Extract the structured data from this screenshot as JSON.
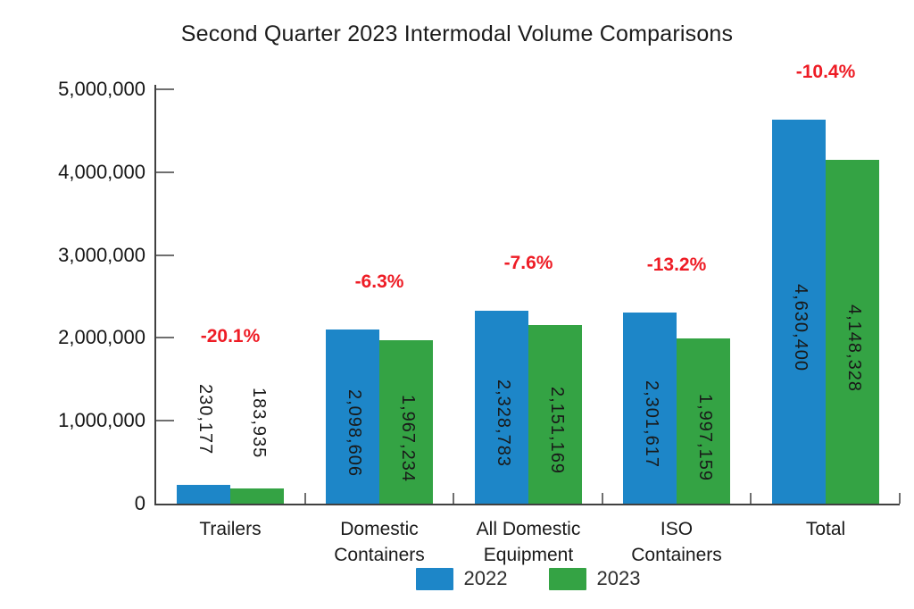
{
  "chart_data": {
    "type": "bar",
    "title": "Second Quarter 2023 Intermodal Volume Comparisons",
    "categories": [
      "Trailers",
      "Domestic Containers",
      "All Domestic Equipment",
      "ISO Containers",
      "Total"
    ],
    "category_label_lines": [
      [
        "Trailers"
      ],
      [
        "Domestic",
        "Containers"
      ],
      [
        "All Domestic",
        "Equipment"
      ],
      [
        "ISO",
        "Containers"
      ],
      [
        "Total"
      ]
    ],
    "series": [
      {
        "name": "2022",
        "color": "#1d86c8",
        "values": [
          230177,
          2098606,
          2328783,
          2301617,
          4630400
        ],
        "value_labels": [
          "230,177",
          "2,098,606",
          "2,328,783",
          "2,301,617",
          "4,630,400"
        ]
      },
      {
        "name": "2023",
        "color": "#34a344",
        "values": [
          183935,
          1967234,
          2151169,
          1997159,
          4148328
        ],
        "value_labels": [
          "183,935",
          "1,967,234",
          "2,151,169",
          "1,997,159",
          "4,148,328"
        ]
      }
    ],
    "pct_change_labels": [
      "-20.1%",
      "-6.3%",
      "-7.6%",
      "-13.2%",
      "-10.4%"
    ],
    "pct_change_color": "#ee1c25",
    "ylim": [
      0,
      5000000
    ],
    "y_tick_step": 1000000,
    "y_tick_labels": [
      "0",
      "1,000,000",
      "2,000,000",
      "3,000,000",
      "4,000,000",
      "5,000,000"
    ],
    "grid": false,
    "legend_position": "bottom",
    "legend_labels": [
      "2022",
      "2023"
    ],
    "axis_color": "#404040",
    "tick_color": "#6f6f6f",
    "value_label_color": "#191919",
    "text_color": "#1a1a1a"
  }
}
